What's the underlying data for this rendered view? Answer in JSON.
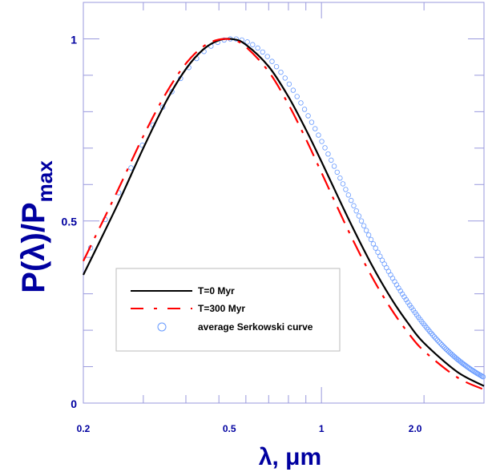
{
  "chart_data": {
    "type": "line",
    "xlabel": "λ, μm",
    "ylabel": "P(λ)/P",
    "ylabel_sub": "max",
    "xscale": "log",
    "xlim": [
      0.2,
      3.0
    ],
    "ylim": [
      0,
      1.1
    ],
    "grid": false,
    "legend_position": "lower-left",
    "x_ticks": [
      {
        "value": 0.2,
        "label": "0.2"
      },
      {
        "value": 0.5,
        "label": "0.5"
      },
      {
        "value": 1.0,
        "label": "1"
      },
      {
        "value": 2.0,
        "label": "2.0"
      }
    ],
    "y_ticks": [
      {
        "value": 0,
        "label": "0"
      },
      {
        "value": 0.5,
        "label": "0.5"
      },
      {
        "value": 1,
        "label": "1"
      }
    ],
    "x": [
      0.2,
      0.25,
      0.3,
      0.35,
      0.4,
      0.45,
      0.5,
      0.55,
      0.6,
      0.7,
      0.8,
      0.9,
      1.0,
      1.2,
      1.4,
      1.6,
      1.8,
      2.0,
      2.5,
      3.0
    ],
    "series": [
      {
        "name": "T=0 Myr",
        "color": "#000000",
        "style": "solid",
        "values": [
          0.352,
          0.538,
          0.7,
          0.828,
          0.917,
          0.971,
          0.996,
          0.999,
          0.984,
          0.924,
          0.841,
          0.751,
          0.663,
          0.506,
          0.382,
          0.288,
          0.218,
          0.165,
          0.086,
          0.047
        ]
      },
      {
        "name": "T=300 Myr",
        "color": "#ff0000",
        "style": "dash-dot",
        "values": [
          0.39,
          0.576,
          0.733,
          0.851,
          0.932,
          0.979,
          0.998,
          0.997,
          0.978,
          0.91,
          0.82,
          0.725,
          0.633,
          0.473,
          0.35,
          0.259,
          0.192,
          0.143,
          0.071,
          0.037
        ]
      },
      {
        "name": "average Serkowski curve",
        "color": "#6699ff",
        "style": "circles",
        "serkowski": {
          "lambda_max": 0.55,
          "K": 0.92,
          "x_start": 0.21,
          "x_end": 3.0,
          "x_step": 0.022
        }
      }
    ]
  }
}
